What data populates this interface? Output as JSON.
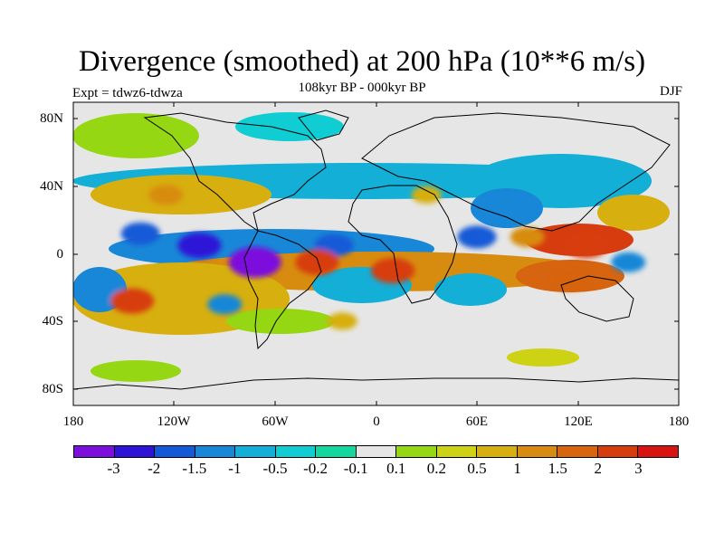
{
  "title": "Divergence (smoothed) at 200 hPa (10**6 m/s)",
  "subtitle": "108kyr BP - 000kyr BP",
  "experiment": "Expt = tdwz6-tdwza",
  "season": "DJF",
  "lat_ticks": [
    "80N",
    "40N",
    "0",
    "40S",
    "80S"
  ],
  "lon_ticks": [
    "180",
    "120W",
    "60W",
    "0",
    "60E",
    "120E",
    "180"
  ],
  "colorbar": {
    "colors": [
      "#7d0fdc",
      "#2d14d7",
      "#145ad7",
      "#1987d7",
      "#14afd7",
      "#0fcdd2",
      "#14d7a0",
      "#e6e6e6",
      "#96d714",
      "#cdd214",
      "#d7af0f",
      "#d78c0f",
      "#d7640f",
      "#d73c0f",
      "#d7140f"
    ],
    "labels": [
      "-3",
      "-2",
      "-1.5",
      "-1",
      "-0.5",
      "-0.2",
      "-0.1",
      "0.1",
      "0.2",
      "0.5",
      "1",
      "1.5",
      "2",
      "3"
    ]
  },
  "chart_data": {
    "type": "heatmap",
    "projection": "cylindrical-equidistant",
    "xlim": [
      -180,
      180
    ],
    "ylim": [
      -90,
      90
    ],
    "field": "200 hPa divergence difference (smoothed), units 10**6 m/s",
    "features": [
      {
        "lon": -72,
        "lat": -5,
        "value": -3
      },
      {
        "lon": -105,
        "lat": 5,
        "value": -2
      },
      {
        "lon": -140,
        "lat": 12,
        "value": -1.5
      },
      {
        "lon": -25,
        "lat": 5,
        "value": -1.5
      },
      {
        "lon": 60,
        "lat": 10,
        "value": -1.5
      },
      {
        "lon": 150,
        "lat": -5,
        "value": -1
      },
      {
        "lon": -90,
        "lat": -30,
        "value": -1
      },
      {
        "lon": -155,
        "lat": -25,
        "value": -1
      },
      {
        "lon": -145,
        "lat": -28,
        "value": 2
      },
      {
        "lon": -35,
        "lat": -5,
        "value": 2
      },
      {
        "lon": 10,
        "lat": -10,
        "value": 2
      },
      {
        "lon": 125,
        "lat": 5,
        "value": 2
      },
      {
        "lon": 115,
        "lat": -15,
        "value": 1.5
      },
      {
        "lon": 90,
        "lat": 10,
        "value": 1
      },
      {
        "lon": -125,
        "lat": 35,
        "value": 1
      },
      {
        "lon": 30,
        "lat": 35,
        "value": 0.5
      },
      {
        "lon": -20,
        "lat": -40,
        "value": 0.5
      }
    ]
  }
}
